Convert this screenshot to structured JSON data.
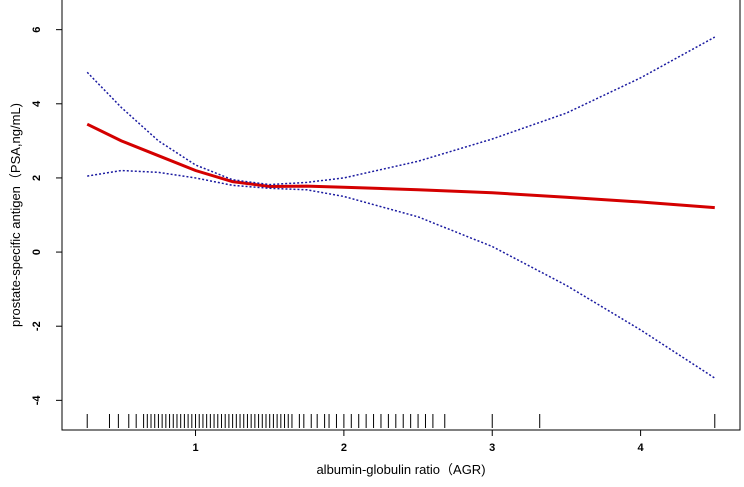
{
  "chart_data": {
    "type": "line",
    "xlabel": "albumin-globulin ratio（AGR)",
    "ylabel": "prostate-specific antigen（PSA,ng/mL)",
    "x": [
      0.27,
      0.5,
      0.75,
      1.0,
      1.25,
      1.5,
      1.75,
      2.0,
      2.5,
      3.0,
      3.5,
      4.0,
      4.5
    ],
    "series": [
      {
        "color": "#d40000",
        "style": "solid",
        "values": [
          3.45,
          3.0,
          2.6,
          2.2,
          1.9,
          1.77,
          1.78,
          1.75,
          1.68,
          1.6,
          1.48,
          1.35,
          1.2
        ]
      },
      {
        "color": "#1a1aa0",
        "style": "dotted",
        "values": [
          4.85,
          3.9,
          3.0,
          2.35,
          1.95,
          1.82,
          1.88,
          2.0,
          2.45,
          3.05,
          3.75,
          4.7,
          5.8
        ]
      },
      {
        "color": "#1a1aa0",
        "style": "dotted",
        "values": [
          2.05,
          2.2,
          2.15,
          2.0,
          1.8,
          1.72,
          1.68,
          1.5,
          0.95,
          0.15,
          -0.9,
          -2.1,
          -3.4
        ]
      }
    ],
    "rug": [
      0.27,
      0.42,
      0.48,
      0.55,
      0.6,
      0.65,
      0.675,
      0.7,
      0.725,
      0.75,
      0.775,
      0.8,
      0.825,
      0.85,
      0.875,
      0.9,
      0.925,
      0.95,
      0.975,
      1.0,
      1.025,
      1.05,
      1.075,
      1.1,
      1.125,
      1.15,
      1.175,
      1.2,
      1.225,
      1.25,
      1.275,
      1.3,
      1.325,
      1.35,
      1.375,
      1.4,
      1.425,
      1.45,
      1.475,
      1.5,
      1.525,
      1.55,
      1.575,
      1.6,
      1.625,
      1.65,
      1.7,
      1.73,
      1.78,
      1.82,
      1.87,
      1.9,
      1.95,
      2.0,
      2.05,
      2.1,
      2.15,
      2.2,
      2.25,
      2.3,
      2.35,
      2.4,
      2.45,
      2.5,
      2.55,
      2.6,
      2.68,
      3.0,
      3.32,
      4.5
    ],
    "xlim": [
      0.1,
      4.67
    ],
    "xticks": [
      1,
      2,
      3,
      4
    ],
    "ylim": [
      -4.8,
      6.8
    ],
    "yticks": [
      -4,
      -2,
      0,
      2,
      4,
      6
    ]
  }
}
